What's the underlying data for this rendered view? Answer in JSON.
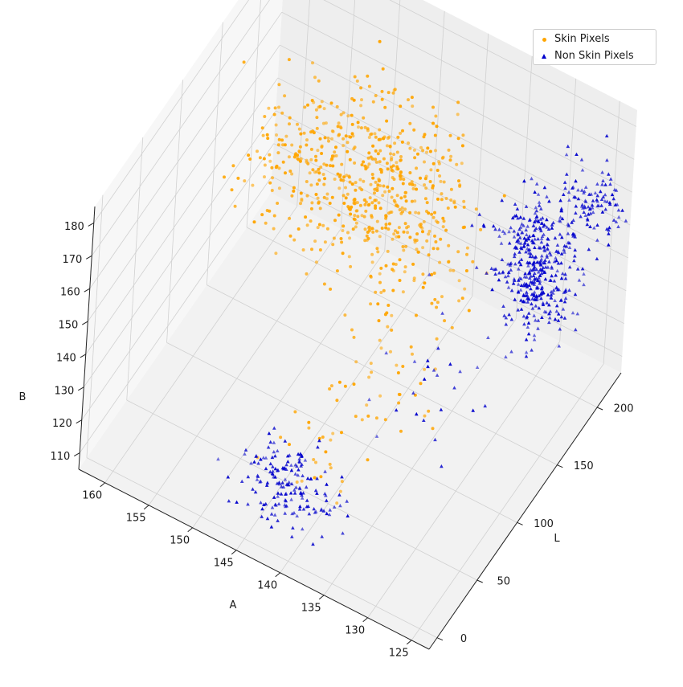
{
  "chart_data": {
    "type": "scatter",
    "projection": "3d",
    "xlabel": "L",
    "ylabel": "A",
    "zlabel": "B",
    "xlim": [
      -10,
      230
    ],
    "ylim": [
      123,
      163
    ],
    "zlim": [
      105,
      185
    ],
    "xticks": [
      "0",
      "50",
      "100",
      "150",
      "200"
    ],
    "yticks": [
      "125",
      "130",
      "135",
      "140",
      "145",
      "150",
      "155",
      "160"
    ],
    "zticks": [
      "110",
      "120",
      "130",
      "140",
      "150",
      "160",
      "170",
      "180"
    ],
    "grid": true,
    "legend_position": "top-right",
    "series": [
      {
        "name": "Skin Pixels",
        "marker": "circle",
        "color": "#ffa500",
        "clusters": [
          {
            "center": [
              150,
              145,
              160
            ],
            "spread": [
              28,
              3.5,
              8
            ],
            "count": 380
          },
          {
            "center": [
              130,
              152,
              168
            ],
            "spread": [
              25,
              3,
              6
            ],
            "count": 150
          },
          {
            "center": [
              165,
              140,
              145
            ],
            "spread": [
              20,
              3,
              10
            ],
            "count": 120
          },
          {
            "center": [
              100,
              138,
              130
            ],
            "spread": [
              30,
              3,
              8
            ],
            "count": 50
          },
          {
            "center": [
              45,
              142,
              120
            ],
            "spread": [
              14,
              2.5,
              5
            ],
            "count": 20
          }
        ]
      },
      {
        "name": "Non Skin Pixels",
        "marker": "triangle",
        "color": "#0000cc",
        "clusters": [
          {
            "center": [
              205,
              131,
              135
            ],
            "spread": [
              12,
              2,
              9
            ],
            "count": 420
          },
          {
            "center": [
              210,
              126,
              160
            ],
            "spread": [
              10,
              1.8,
              6
            ],
            "count": 110
          },
          {
            "center": [
              35,
              143,
              112
            ],
            "spread": [
              12,
              2.5,
              4
            ],
            "count": 170
          },
          {
            "center": [
              120,
              136,
              122
            ],
            "spread": [
              25,
              2.5,
              8
            ],
            "count": 25
          }
        ]
      }
    ]
  }
}
